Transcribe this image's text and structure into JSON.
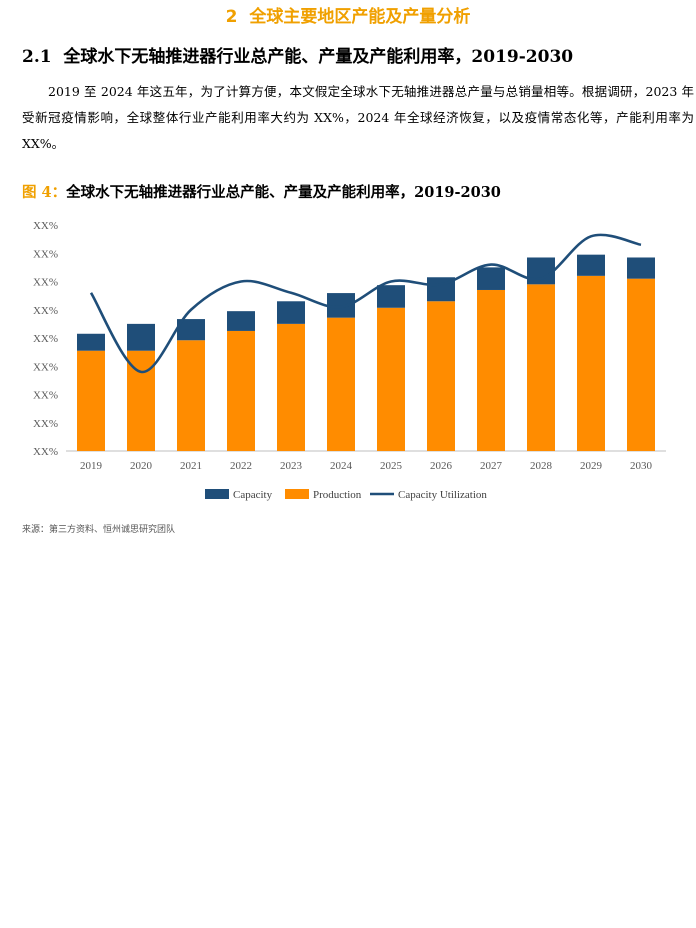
{
  "section": {
    "number": "2",
    "title": "全球主要地区产能及产量分析"
  },
  "subsection": {
    "number": "2.1",
    "title": "全球水下无轴推进器行业总产能、产量及产能利用率，2019-2030"
  },
  "paragraph": "2019 至 2024 年这五年，为了计算方便，本文假定全球水下无轴推进器总产量与总销量相等。根据调研，2023 年受新冠疫情影响，全球整体行业产能利用率大约为 XX%，2024 年全球经济恢复，以及疫情常态化等，产能利用率为 XX%。",
  "figure": {
    "prefix": "图 4：",
    "title": "全球水下无轴推进器行业总产能、产量及产能利用率，2019-2030"
  },
  "source": "来源：第三方资料、恒州诚思研究团队",
  "colors": {
    "capacity": "#1F4E79",
    "production": "#FF8C00",
    "utilization": "#1F4E79",
    "accent": "#F0A000"
  },
  "chart_data": {
    "type": "bar",
    "stacked": true,
    "categories": [
      "2019",
      "2020",
      "2021",
      "2022",
      "2023",
      "2024",
      "2025",
      "2026",
      "2027",
      "2028",
      "2029",
      "2030"
    ],
    "y_tick_labels": [
      "XX%",
      "XX%",
      "XX%",
      "XX%",
      "XX%",
      "XX%",
      "XX%",
      "XX%",
      "XX%"
    ],
    "ylim": [
      0,
      8
    ],
    "series": [
      {
        "name": "Production",
        "values": [
          3.55,
          3.55,
          3.92,
          4.25,
          4.5,
          4.72,
          5.07,
          5.3,
          5.7,
          5.9,
          6.2,
          6.1
        ]
      },
      {
        "name": "Capacity",
        "values": [
          0.6,
          0.95,
          0.75,
          0.7,
          0.8,
          0.87,
          0.8,
          0.85,
          0.8,
          0.95,
          0.75,
          0.75
        ]
      }
    ],
    "line_series": {
      "name": "Capacity Utilization",
      "values": [
        5.6,
        2.8,
        5.0,
        6.0,
        5.6,
        5.1,
        6.0,
        5.9,
        6.6,
        6.1,
        7.6,
        7.3
      ]
    },
    "legend": {
      "placement": "bottom",
      "entries": [
        "Capacity",
        "Production",
        "Capacity Utilization"
      ]
    },
    "grid": false
  }
}
